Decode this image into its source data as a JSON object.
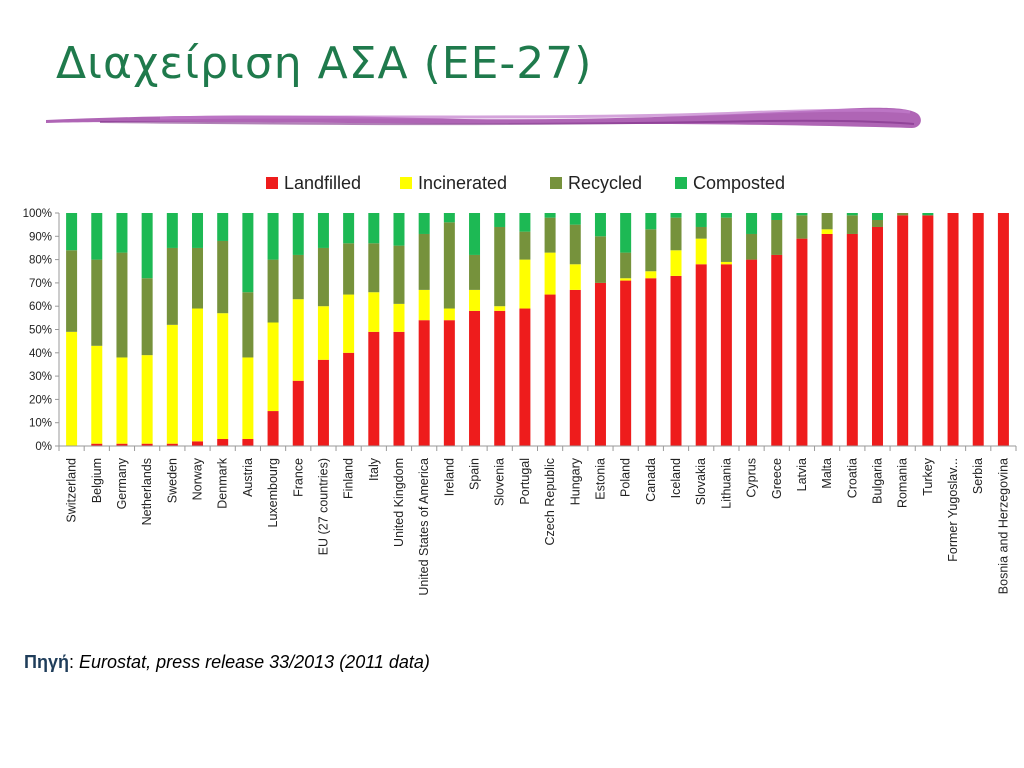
{
  "slide": {
    "title": "Διαχείριση ΑΣΑ (ΕΕ-27)",
    "source_label": "Πηγή",
    "source_sep": ":",
    "source_text": "Eurostat, press release 33/2013 (2011 data)"
  },
  "colors": {
    "title": "#1f7a4c",
    "brush": "#a14aa8"
  },
  "chart_data": {
    "type": "bar",
    "stacked": true,
    "title": "",
    "xlabel": "",
    "ylabel": "",
    "ylim": [
      0,
      100
    ],
    "yticks": [
      "0%",
      "10%",
      "20%",
      "30%",
      "40%",
      "50%",
      "60%",
      "70%",
      "80%",
      "90%",
      "100%"
    ],
    "grid": false,
    "legend_position": "top",
    "categories": [
      "Switzerland",
      "Belgium",
      "Germany",
      "Netherlands",
      "Sweden",
      "Norway",
      "Denmark",
      "Austria",
      "Luxembourg",
      "France",
      "EU (27 countries)",
      "Finland",
      "Italy",
      "United Kingdom",
      "United States of America",
      "Ireland",
      "Spain",
      "Slovenia",
      "Portugal",
      "Czech Republic",
      "Hungary",
      "Estonia",
      "Poland",
      "Canada",
      "Iceland",
      "Slovakia",
      "Lithuania",
      "Cyprus",
      "Greece",
      "Latvia",
      "Malta",
      "Croatia",
      "Bulgaria",
      "Romania",
      "Turkey",
      "Former Yugoslav...",
      "Serbia",
      "Bosnia and Herzegovina"
    ],
    "series": [
      {
        "name": "Landfilled",
        "color": "#ee1c1c",
        "values": [
          0,
          1,
          1,
          1,
          1,
          2,
          3,
          3,
          15,
          28,
          37,
          40,
          49,
          49,
          54,
          54,
          58,
          58,
          59,
          65,
          67,
          70,
          71,
          72,
          73,
          78,
          78,
          80,
          82,
          89,
          91,
          91,
          94,
          99,
          99,
          100,
          100,
          100
        ]
      },
      {
        "name": "Incinerated",
        "color": "#ffff00",
        "values": [
          49,
          42,
          37,
          38,
          51,
          57,
          54,
          35,
          38,
          35,
          23,
          25,
          17,
          12,
          13,
          5,
          9,
          2,
          21,
          18,
          11,
          0,
          1,
          3,
          11,
          11,
          1,
          0,
          0,
          0,
          2,
          0,
          0,
          0,
          0,
          0,
          0,
          0
        ]
      },
      {
        "name": "Recycled",
        "color": "#76923c",
        "values": [
          35,
          37,
          45,
          33,
          33,
          26,
          31,
          28,
          27,
          19,
          25,
          22,
          21,
          25,
          24,
          37,
          15,
          34,
          12,
          15,
          17,
          20,
          11,
          18,
          14,
          5,
          19,
          11,
          15,
          10,
          7,
          8,
          3,
          1,
          0,
          0,
          0,
          0
        ]
      },
      {
        "name": "Composted",
        "color": "#1db954",
        "values": [
          16,
          20,
          17,
          28,
          15,
          15,
          12,
          34,
          20,
          18,
          15,
          13,
          13,
          14,
          9,
          4,
          18,
          6,
          8,
          2,
          5,
          10,
          17,
          7,
          2,
          6,
          2,
          9,
          3,
          1,
          0,
          1,
          3,
          0,
          1,
          0,
          0,
          0
        ]
      }
    ]
  }
}
